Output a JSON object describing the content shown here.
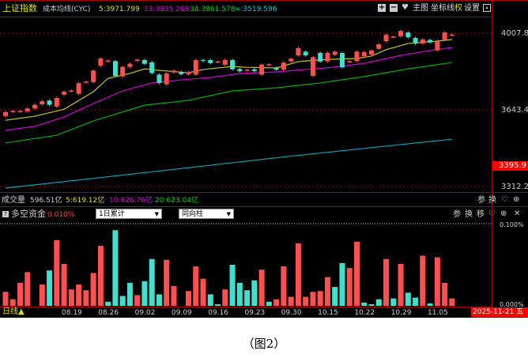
{
  "header": {
    "index_name": "上证指数",
    "indicator": "成本均线(CYC)",
    "ma5": "5:3971.799",
    "ma13": "13:3935.268",
    "ma34": "34:3861.578",
    "ma_inf": "∞:3519.596",
    "buttons": {
      "zoom_in": "+",
      "zoom_out": "−",
      "main_chart": "主图",
      "axis": "坐标线",
      "rights": "权",
      "settings": "设置"
    }
  },
  "price_axis": {
    "labels": [
      "4007.8",
      "3643.4",
      "3312.2"
    ],
    "current": "3395.9"
  },
  "volume": {
    "label": "成交量",
    "value": "596.51亿",
    "ma5": "5:619.12亿",
    "ma10": "10:626.76亿",
    "ma20": "20:623.04亿",
    "buttons": [
      "参",
      "换"
    ]
  },
  "fund": {
    "label": "多空资金",
    "value": "0.010%",
    "select1": "1日累计",
    "select2": "同向柱",
    "buttons": [
      "参",
      "换",
      "移"
    ],
    "axis": [
      "0.100%",
      "0.000%"
    ]
  },
  "date_axis": {
    "period": "日线▲",
    "labels": [
      "08.19",
      "08.26",
      "09.02",
      "09.09",
      "09.16",
      "09.23",
      "09.30",
      "10.15",
      "10.22",
      "10.29",
      "11.05"
    ],
    "current_date": "2025-11-21",
    "weekday": "五"
  },
  "caption": "（图2）",
  "colors": {
    "up": "#ff5050",
    "down": "#40e0d0",
    "ma5": "#c8c800",
    "ma13": "#d000d0",
    "ma34": "#00b000",
    "ma_inf": "#00a8b8",
    "grid": "#a00000"
  },
  "chart_data": [
    {
      "type": "candlestick",
      "ylim": [
        3312.2,
        4007.8
      ],
      "candles_open_close": [
        [
          3632,
          3650
        ],
        [
          3653,
          3653
        ],
        [
          3653,
          3653
        ],
        [
          3653,
          3666
        ],
        [
          3666,
          3683
        ],
        [
          3685,
          3699
        ],
        [
          3702,
          3683
        ],
        [
          3675,
          3714
        ],
        [
          3729,
          3742
        ],
        [
          3746,
          3746
        ],
        [
          3733,
          3781
        ],
        [
          3786,
          3786
        ],
        [
          3786,
          3838
        ],
        [
          3860,
          3893
        ],
        [
          3882,
          3882
        ],
        [
          3881,
          3814
        ],
        [
          3812,
          3855
        ],
        [
          3855,
          3869
        ],
        [
          3886,
          3886
        ],
        [
          3886,
          3869
        ],
        [
          3876,
          3827
        ],
        [
          3820,
          3782
        ],
        [
          3776,
          3825
        ],
        [
          3830,
          3838
        ],
        [
          3832,
          3822
        ],
        [
          3822,
          3830
        ],
        [
          3820,
          3886
        ],
        [
          3886,
          3882
        ],
        [
          3886,
          3872
        ],
        [
          3878,
          3878
        ],
        [
          3865,
          3886
        ],
        [
          3886,
          3844
        ],
        [
          3845,
          3835
        ],
        [
          3840,
          3840
        ],
        [
          3844,
          3836
        ],
        [
          3820,
          3865
        ],
        [
          3865,
          3865
        ],
        [
          3850,
          3842
        ],
        [
          3842,
          3874
        ],
        [
          3880,
          3892
        ],
        [
          3907,
          3940
        ],
        [
          3924,
          3907
        ],
        [
          3814,
          3899
        ],
        [
          3918,
          3879
        ],
        [
          3880,
          3918
        ],
        [
          3910,
          3924
        ],
        [
          3918,
          3853
        ],
        [
          3879,
          3879
        ],
        [
          3882,
          3924
        ],
        [
          3904,
          3922
        ],
        [
          3911,
          3929
        ],
        [
          3937,
          3957
        ],
        [
          3972,
          4000
        ],
        [
          3991,
          3991
        ],
        [
          3994,
          4018
        ],
        [
          4011,
          3990
        ],
        [
          3986,
          3961
        ],
        [
          3961,
          3979
        ],
        [
          3977,
          3966
        ],
        [
          3930,
          3972
        ],
        [
          3978,
          4011
        ],
        [
          4000,
          4000
        ]
      ],
      "ma_lines": {
        "ma5": [
          [
            1,
            3613
          ],
          [
            5,
            3631
          ],
          [
            9,
            3663
          ],
          [
            13,
            3742
          ],
          [
            15,
            3803
          ],
          [
            18,
            3825
          ],
          [
            20,
            3846
          ],
          [
            22,
            3839
          ],
          [
            26,
            3828
          ],
          [
            28,
            3843
          ],
          [
            32,
            3857
          ],
          [
            34,
            3853
          ],
          [
            38,
            3850
          ],
          [
            41,
            3879
          ],
          [
            45,
            3889
          ],
          [
            49,
            3893
          ],
          [
            51,
            3904
          ],
          [
            53,
            3933
          ],
          [
            56,
            3961
          ],
          [
            60,
            3972
          ],
          [
            62,
            3979
          ]
        ],
        "ma13": [
          [
            1,
            3567
          ],
          [
            5,
            3585
          ],
          [
            9,
            3628
          ],
          [
            13,
            3689
          ],
          [
            17,
            3746
          ],
          [
            21,
            3782
          ],
          [
            25,
            3796
          ],
          [
            29,
            3807
          ],
          [
            33,
            3825
          ],
          [
            38,
            3832
          ],
          [
            42,
            3843
          ],
          [
            46,
            3854
          ],
          [
            50,
            3871
          ],
          [
            55,
            3907
          ],
          [
            59,
            3929
          ],
          [
            62,
            3943
          ]
        ],
        "ma34": [
          [
            1,
            3510
          ],
          [
            8,
            3545
          ],
          [
            13,
            3610
          ],
          [
            20,
            3681
          ],
          [
            26,
            3703
          ],
          [
            32,
            3746
          ],
          [
            38,
            3760
          ],
          [
            44,
            3782
          ],
          [
            50,
            3811
          ],
          [
            56,
            3846
          ],
          [
            62,
            3875
          ]
        ],
        "ma_inf": [
          [
            1,
            3305
          ],
          [
            20,
            3375
          ],
          [
            40,
            3450
          ],
          [
            62,
            3527
          ]
        ]
      }
    },
    {
      "type": "bar",
      "ylim": [
        0,
        0.1
      ],
      "unit": "%",
      "values": [
        0.017,
        0.008,
        0.028,
        0.041,
        0,
        0.026,
        0.043,
        0.08,
        0.051,
        0.02,
        0.026,
        0.019,
        0.04,
        0.073,
        0.005,
        0.092,
        0.012,
        0.028,
        0.013,
        0.03,
        0.057,
        0.014,
        0.056,
        0.024,
        0,
        0.018,
        0.048,
        0.033,
        0.014,
        0.002,
        0.02,
        0.05,
        0.028,
        0.019,
        0.031,
        0.044,
        0.005,
        0.008,
        0.048,
        0.011,
        0.076,
        0.011,
        0.017,
        0.018,
        0.035,
        0.023,
        0.052,
        0.046,
        0.078,
        0.004,
        0.002,
        0.008,
        0.057,
        0.009,
        0.051,
        0.016,
        0.01,
        0.061,
        0.003,
        0.059,
        0.028,
        0.009
      ],
      "direction": [
        "up",
        "up",
        "up",
        "up",
        "up",
        "up",
        "down",
        "up",
        "up",
        "up",
        "up",
        "up",
        "up",
        "up",
        "down",
        "down",
        "down",
        "down",
        "up",
        "down",
        "down",
        "down",
        "up",
        "up",
        "up",
        "up",
        "up",
        "up",
        "down",
        "down",
        "up",
        "down",
        "down",
        "down",
        "down",
        "up",
        "down",
        "up",
        "up",
        "up",
        "up",
        "up",
        "up",
        "up",
        "up",
        "down",
        "down",
        "up",
        "up",
        "down",
        "down",
        "down",
        "up",
        "down",
        "up",
        "down",
        "down",
        "up",
        "down",
        "up",
        "up",
        "up"
      ]
    }
  ]
}
